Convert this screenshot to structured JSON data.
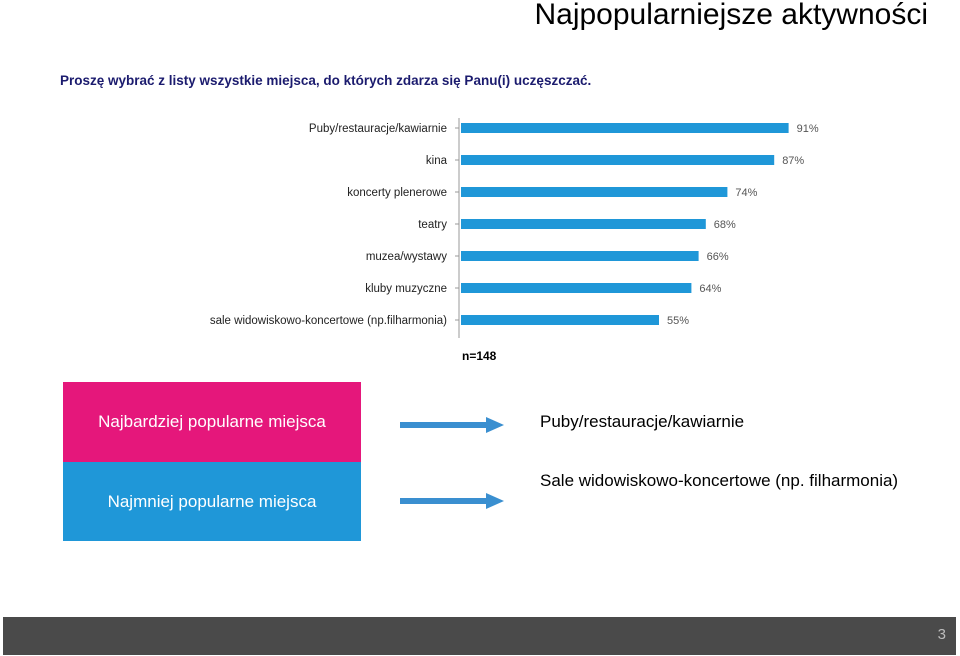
{
  "header": {
    "title": "Najpopularniejsze aktywności",
    "question_line1": "Proszę wybrać z listy wszystkie miejsca, do których zdarza się Panu(i) uczęszczać."
  },
  "chart_data": {
    "type": "bar",
    "orientation": "horizontal",
    "categories": [
      "Puby/restauracje/kawiarnie",
      "kina",
      "koncerty plenerowe",
      "teatry",
      "muzea/wystawy",
      "kluby muzyczne",
      "sale widowiskowo-koncertowe (np.filharmonia)"
    ],
    "values": [
      91,
      87,
      74,
      68,
      66,
      64,
      55
    ],
    "value_labels": [
      "91%",
      "87%",
      "74%",
      "68%",
      "66%",
      "64%",
      "55%"
    ],
    "xlim": [
      0,
      100
    ],
    "bar_color": "#1f97d8",
    "grid": false
  },
  "sample": "n=148",
  "summary": {
    "most_label": "Najbardziej popularne miejsca",
    "most_value": "Puby/restauracje/kawiarnie",
    "least_label": "Najmniej popularne miejsca",
    "least_value": "Sale widowiskowo-koncertowe (np. filharmonia)",
    "most_color": "#e5177b",
    "least_color": "#1f97d8"
  },
  "footer": {
    "page": "3"
  }
}
